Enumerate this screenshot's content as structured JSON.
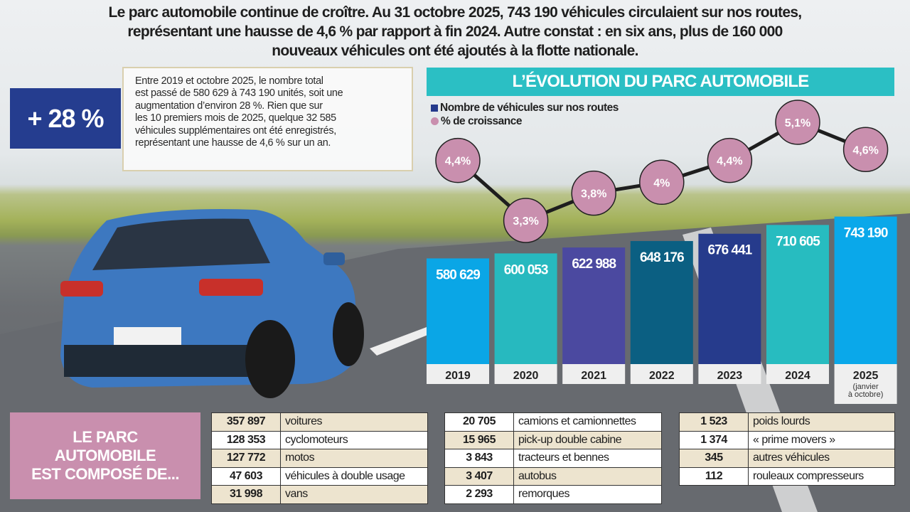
{
  "header": {
    "lines": [
      "Le parc automobile continue de croître. Au 31 octobre 2025, 743 190 véhicules circulaient sur nos routes,",
      "représentant une hausse de 4,6 % par rapport à fin 2024. Autre constat : en six ans, plus de 160 000",
      "nouveaux véhicules ont été ajoutés à la flotte nationale."
    ]
  },
  "highlight": {
    "value": "+ 28 %",
    "text_lines": [
      "Entre 2019 et octobre 2025, le nombre total",
      "est passé de 580 629 à 743 190 unités, soit une",
      "augmentation d’environ 28 %. Rien que sur",
      "les 10 premiers mois de 2025, quelque 32 585",
      "véhicules supplémentaires ont été enregistrés,",
      "représentant une hausse de 4,6 % sur un an."
    ]
  },
  "chart_data": {
    "type": "bar",
    "title": "L’ÉVOLUTION DU PARC AUTOMOBILE",
    "categories": [
      "2019",
      "2020",
      "2021",
      "2022",
      "2023",
      "2024",
      "2025"
    ],
    "category_notes": {
      "2025": "(janvier à octobre)"
    },
    "ylim": [
      170000,
      800000
    ],
    "grid": false,
    "legend_placement": "top-left",
    "series": [
      {
        "name": "Nombre de véhicules sur nos routes",
        "type": "bar",
        "values": [
          580629,
          600053,
          622988,
          648176,
          676441,
          710605,
          743190
        ],
        "labels": [
          "580 629",
          "600 053",
          "622 988",
          "648 176",
          "676 441",
          "710 605",
          "743 190"
        ],
        "colors": [
          "#0aa6e6",
          "#27b9bf",
          "#4b49a0",
          "#0b5f82",
          "#263b8c",
          "#27bcc0",
          "#0aa8ea"
        ]
      },
      {
        "name": "% de croissance",
        "type": "line",
        "values": [
          4.4,
          3.3,
          3.8,
          4.0,
          4.4,
          5.1,
          4.6
        ],
        "labels": [
          "4,4%",
          "3,3%",
          "3,8%",
          "4%",
          "4,4%",
          "5,1%",
          "4,6%"
        ],
        "color": "#c98fae"
      }
    ]
  },
  "composition": {
    "title_lines": [
      "LE PARC",
      "AUTOMOBILE",
      "EST COMPOSÉ DE..."
    ],
    "tables": [
      [
        {
          "count": "357 897",
          "label": "voitures"
        },
        {
          "count": "128 353",
          "label": "cyclomoteurs"
        },
        {
          "count": "127 772",
          "label": "motos"
        },
        {
          "count": "47 603",
          "label": "véhicules à double usage"
        },
        {
          "count": "31 998",
          "label": "vans"
        }
      ],
      [
        {
          "count": "20 705",
          "label": "camions et camionnettes"
        },
        {
          "count": "15 965",
          "label": "pick-up double cabine"
        },
        {
          "count": "3 843",
          "label": "tracteurs et bennes"
        },
        {
          "count": "3 407",
          "label": "autobus"
        },
        {
          "count": "2 293",
          "label": "remorques"
        }
      ],
      [
        {
          "count": "1 523",
          "label": "poids lourds"
        },
        {
          "count": "1 374",
          "label": "« prime movers »"
        },
        {
          "count": "345",
          "label": "autres véhicules"
        },
        {
          "count": "112",
          "label": "rouleaux compresseurs"
        }
      ]
    ]
  }
}
